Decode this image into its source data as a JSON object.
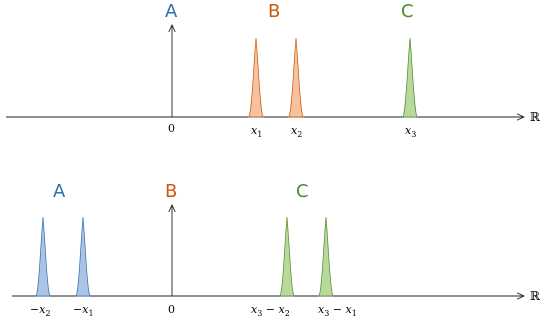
{
  "colors": {
    "A": "#2f6fb1",
    "B": "#c75b12",
    "C": "#4f8a2c",
    "A_fill": "#a9c4e4",
    "B_fill": "#f6c29e",
    "C_fill": "#b9d89c"
  },
  "top": {
    "letters": {
      "A": "A",
      "B": "B",
      "C": "C"
    },
    "ticks": {
      "zero": "0",
      "x1": "x",
      "x1_sub": "1",
      "x2": "x",
      "x2_sub": "2",
      "x3": "x",
      "x3_sub": "3"
    },
    "real": "ℝ"
  },
  "bottom": {
    "letters": {
      "A": "A",
      "B": "B",
      "C": "C"
    },
    "ticks": {
      "neg_x2_minus": "−",
      "neg_x2_x": "x",
      "neg_x2_sub": "2",
      "neg_x1_minus": "−",
      "neg_x1_x": "x",
      "neg_x1_sub": "1",
      "zero": "0",
      "c1_a": "x",
      "c1_a_sub": "3",
      "c1_op": " − ",
      "c1_b": "x",
      "c1_b_sub": "2",
      "c2_a": "x",
      "c2_a_sub": "3",
      "c2_op": " − ",
      "c2_b": "x",
      "c2_b_sub": "1"
    },
    "real": "ℝ"
  }
}
